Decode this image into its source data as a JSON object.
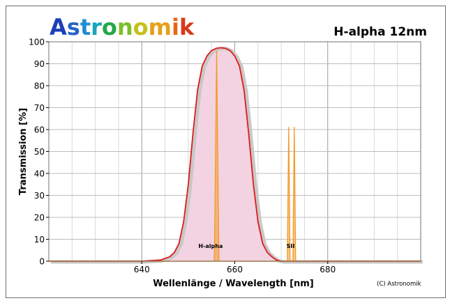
{
  "brand": {
    "name": "Astronomik",
    "letter_colors": [
      "#1a3fb8",
      "#2563c9",
      "#1e8fd0",
      "#18a6b8",
      "#22a84a",
      "#7cbf2a",
      "#c4c21a",
      "#e6a01a",
      "#e8661a",
      "#d63a1a"
    ]
  },
  "chart_data": {
    "type": "line",
    "title": "H-alpha 12nm",
    "xlabel": "Wellenlänge / Wavelength [nm]",
    "ylabel": "Transmission [%]",
    "xlim": [
      620,
      700
    ],
    "ylim": [
      0,
      100
    ],
    "x_ticks": [
      640,
      660,
      680
    ],
    "y_ticks": [
      0,
      10,
      20,
      30,
      40,
      50,
      60,
      70,
      80,
      90,
      100
    ],
    "grid": true,
    "copyright": "(C) Astronomik",
    "series": [
      {
        "role": "filter-transmission",
        "color": "#e01818",
        "fill": "#f3d3e1",
        "x": [
          620,
          640,
          644,
          646,
          647,
          648,
          649,
          650,
          651,
          652,
          653,
          654,
          655,
          656,
          657,
          658,
          659,
          660,
          661,
          662,
          663,
          664,
          665,
          666,
          667,
          668,
          669,
          670,
          700
        ],
        "values": [
          0,
          0,
          0.5,
          2,
          4,
          8,
          18,
          35,
          58,
          78,
          89,
          93.5,
          96,
          97,
          97.3,
          97,
          96,
          93.5,
          89,
          78,
          58,
          35,
          18,
          8,
          4,
          2,
          0.5,
          0,
          0
        ]
      },
      {
        "role": "emission-lines",
        "color": "#f39a2a",
        "x": [
          620,
          655.6,
          655.85,
          656.1,
          656.35,
          656.6,
          671.3,
          671.6,
          671.9,
          672.2,
          672.5,
          672.8,
          673.1,
          700
        ],
        "values": [
          0,
          0,
          48,
          96,
          48,
          0,
          0,
          61,
          0,
          0,
          0,
          61,
          0,
          0
        ]
      }
    ],
    "annotations": [
      {
        "text": "H-alpha",
        "x": 654.8,
        "y": 6
      },
      {
        "text": "SII",
        "x": 672.0,
        "y": 6
      }
    ]
  }
}
